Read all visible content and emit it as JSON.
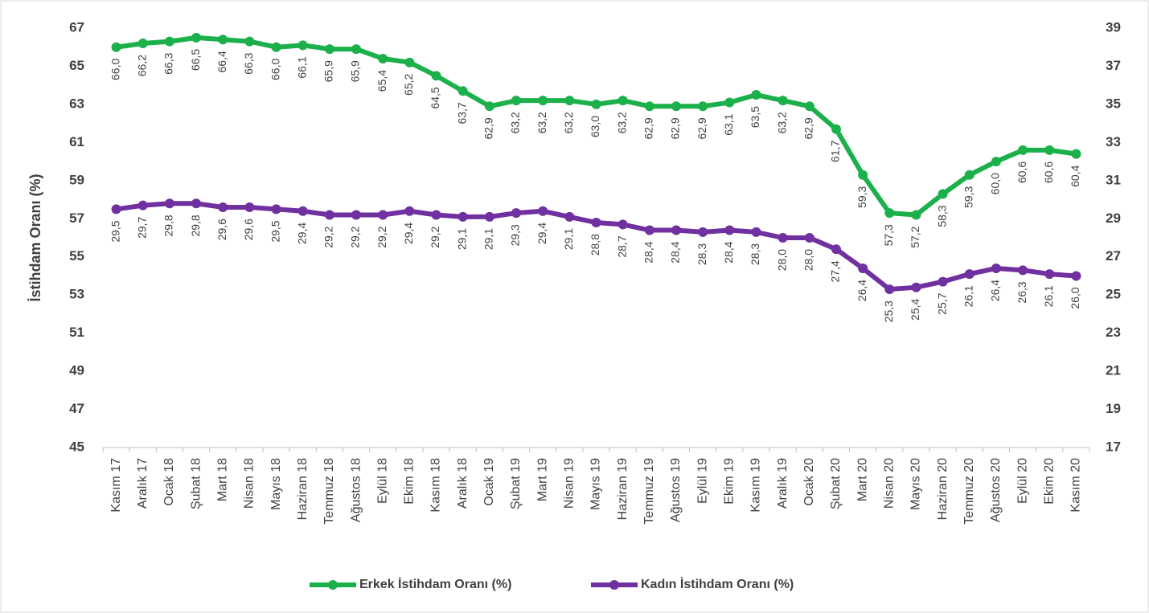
{
  "chart_data": {
    "type": "line",
    "y_label": "İstihdam Oranı (%)",
    "categories": [
      "Kasım 17",
      "Aralık 17",
      "Ocak 18",
      "Şubat 18",
      "Mart 18",
      "Nisan 18",
      "Mayıs 18",
      "Haziran 18",
      "Temmuz 18",
      "Ağustos 18",
      "Eylül 18",
      "Ekim 18",
      "Kasım 18",
      "Aralık 18",
      "Ocak 19",
      "Şubat 19",
      "Mart 19",
      "Nisan 19",
      "Mayıs 19",
      "Haziran 19",
      "Temmuz 19",
      "Ağustos 19",
      "Eylül 19",
      "Ekim 19",
      "Kasım 19",
      "Aralık 19",
      "Ocak 20",
      "Şubat 20",
      "Mart 20",
      "Nisan 20",
      "Mayıs 20",
      "Haziran 20",
      "Temmuz 20",
      "Ağustos 20",
      "Eylül 20",
      "Ekim 20",
      "Kasım 20"
    ],
    "series": [
      {
        "name": "Erkek İstihdam Oranı (%)",
        "color": "#1cb04b",
        "axis": "y",
        "values": [
          66.0,
          66.2,
          66.3,
          66.5,
          66.4,
          66.3,
          66.0,
          66.1,
          65.9,
          65.9,
          65.4,
          65.2,
          64.5,
          63.7,
          62.9,
          63.2,
          63.2,
          63.2,
          63.0,
          63.2,
          62.9,
          62.9,
          62.9,
          63.1,
          63.5,
          63.2,
          62.9,
          61.7,
          59.3,
          57.3,
          57.2,
          58.3,
          59.3,
          60.0,
          60.6,
          60.6,
          60.4
        ],
        "value_labels": [
          "66,0",
          "66,2",
          "66,3",
          "66,5",
          "66,4",
          "66,3",
          "66,0",
          "66,1",
          "65,9",
          "65,9",
          "65,4",
          "65,2",
          "64,5",
          "63,7",
          "62,9",
          "63,2",
          "63,2",
          "63,2",
          "63,0",
          "63,2",
          "62,9",
          "62,9",
          "62,9",
          "63,1",
          "63,5",
          "63,2",
          "62,9",
          "61,7",
          "59,3",
          "57,3",
          "57,2",
          "58,3",
          "59,3",
          "60,0",
          "60,6",
          "60,6",
          "60,4"
        ]
      },
      {
        "name": "Kadın İstihdam Oranı (%)",
        "color": "#7030a0",
        "axis": "y2",
        "values": [
          29.5,
          29.7,
          29.8,
          29.8,
          29.6,
          29.6,
          29.5,
          29.4,
          29.2,
          29.2,
          29.2,
          29.4,
          29.2,
          29.1,
          29.1,
          29.3,
          29.4,
          29.1,
          28.8,
          28.7,
          28.4,
          28.4,
          28.3,
          28.4,
          28.3,
          28.0,
          28.0,
          27.4,
          26.4,
          25.3,
          25.4,
          25.7,
          26.1,
          26.4,
          26.3,
          26.1,
          26.0
        ],
        "value_labels": [
          "29,5",
          "29,7",
          "29,8",
          "29,8",
          "29,6",
          "29,6",
          "29,5",
          "29,4",
          "29,2",
          "29,2",
          "29,2",
          "29,4",
          "29,2",
          "29,1",
          "29,1",
          "29,3",
          "29,4",
          "29,1",
          "28,8",
          "28,7",
          "28,4",
          "28,4",
          "28,3",
          "28,4",
          "28,3",
          "28,0",
          "28,0",
          "27,4",
          "26,4",
          "25,3",
          "25,4",
          "25,7",
          "26,1",
          "26,4",
          "26,3",
          "26,1",
          "26,0"
        ]
      }
    ],
    "ylim": [
      45,
      67
    ],
    "yticks": [
      45,
      47,
      49,
      51,
      53,
      55,
      57,
      59,
      61,
      63,
      65,
      67
    ],
    "y2lim": [
      17,
      39
    ],
    "y2ticks": [
      17,
      19,
      21,
      23,
      25,
      27,
      29,
      31,
      33,
      35,
      37,
      39
    ],
    "legend": "bottom"
  }
}
